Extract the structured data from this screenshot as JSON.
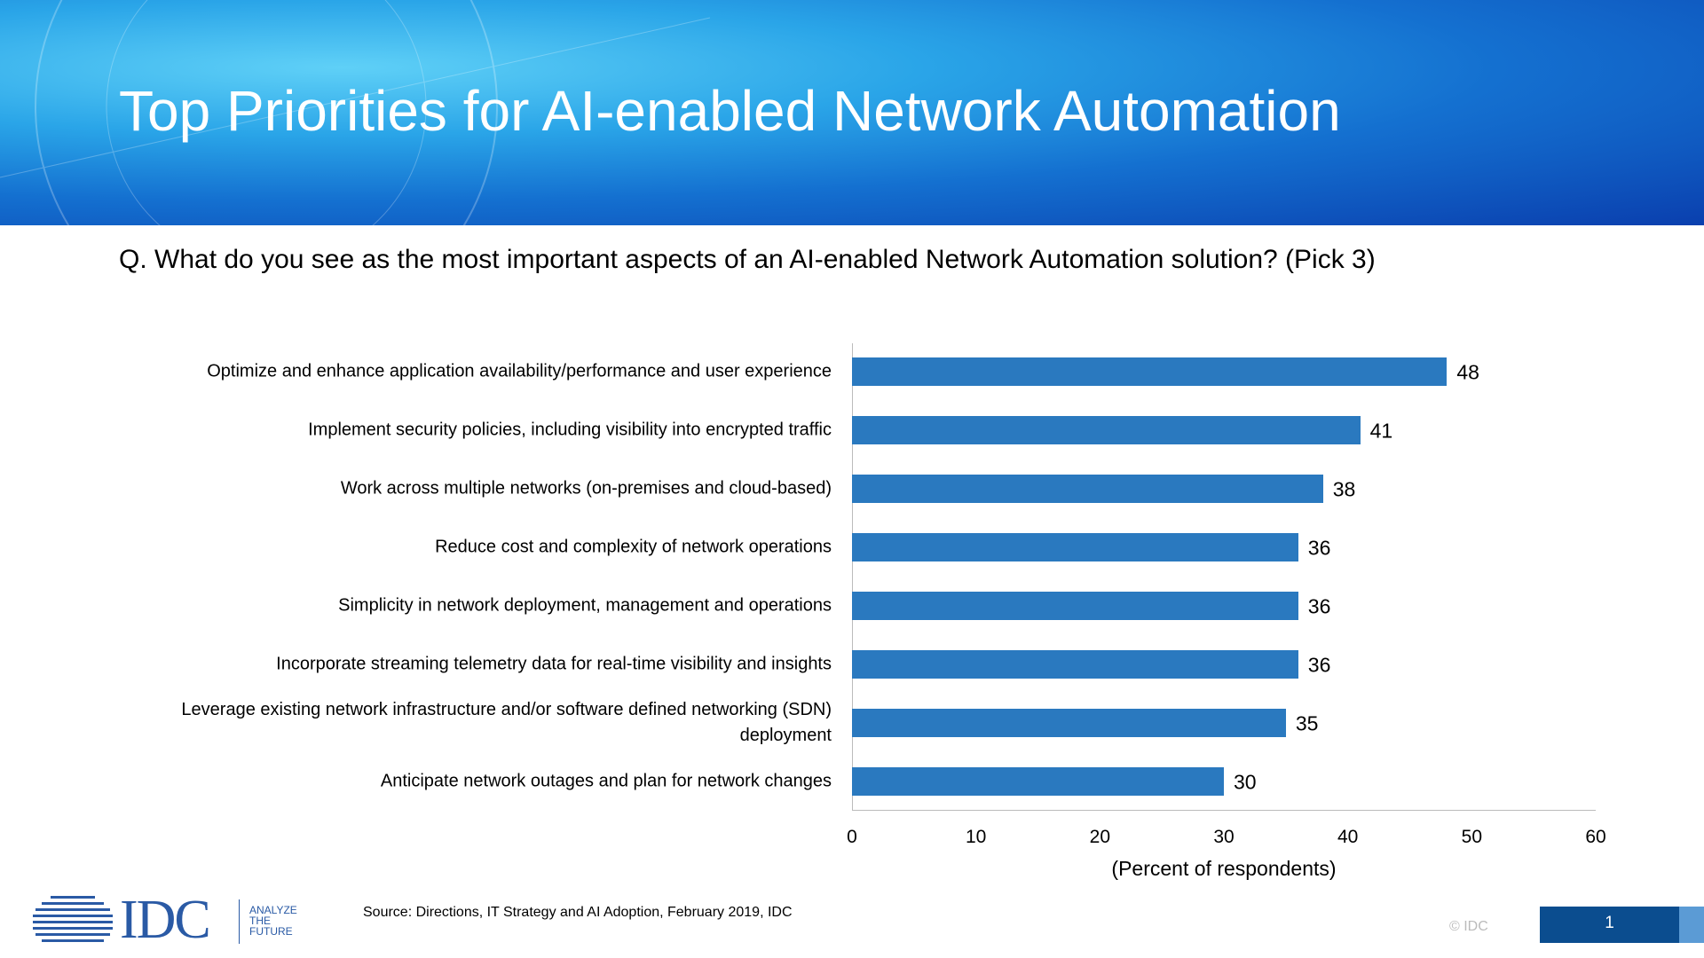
{
  "chart_data": {
    "type": "bar",
    "orientation": "horizontal",
    "title": "Top Priorities for AI-enabled Network Automation",
    "subtitle": "Q. What do you see as the most important aspects of an AI-enabled Network Automation solution? (Pick 3)",
    "categories": [
      "Optimize and enhance application availability/performance and user experience",
      "Implement security policies, including visibility into encrypted traffic",
      "Work across multiple networks (on-premises and cloud-based)",
      "Reduce cost and complexity of network operations",
      "Simplicity in network deployment, management and operations",
      "Incorporate streaming telemetry data for real-time visibility and insights",
      "Leverage existing network infrastructure and/or software defined networking (SDN) deployment",
      "Anticipate network outages and plan for network changes"
    ],
    "values": [
      48,
      41,
      38,
      36,
      36,
      36,
      35,
      30
    ],
    "color": "#2a79bf",
    "xlim": [
      0,
      60
    ],
    "xticks": [
      0,
      10,
      20,
      30,
      40,
      50,
      60
    ],
    "xlabel": "(Percent of respondents)",
    "grid": false
  },
  "footer": {
    "source": "Source: Directions, IT Strategy and AI Adoption, February 2019, IDC",
    "logo": "IDC",
    "tagline": "ANALYZE THE FUTURE",
    "copyright": "© IDC",
    "page": "1"
  }
}
